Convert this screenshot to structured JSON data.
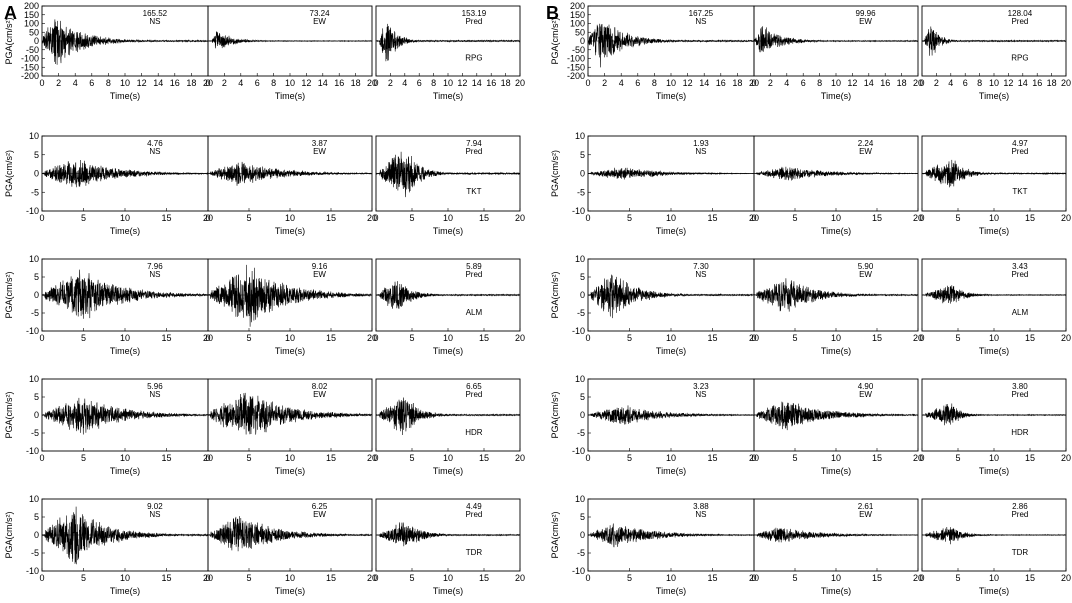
{
  "panel_labels": [
    "A",
    "B"
  ],
  "colors": {
    "trace": "#000000",
    "axes": "#000000",
    "background": "#ffffff"
  },
  "chart_data": [
    {
      "panel": "A",
      "type": "line",
      "xlabel": "Time(s)",
      "ylabel": "PGA(cm/s²)",
      "grid": false,
      "rows": [
        {
          "station": "RPG",
          "xlim": [
            0,
            20
          ],
          "xticks": [
            0,
            2,
            4,
            6,
            8,
            10,
            12,
            14,
            16,
            18,
            20
          ],
          "ylim": [
            -200,
            200
          ],
          "yticks": [
            -200,
            -150,
            -100,
            -50,
            0,
            50,
            100,
            150,
            200
          ],
          "series": [
            {
              "name": "NS",
              "peak": "165.52",
              "env": [
                0.1,
                1.5,
                7
              ]
            },
            {
              "name": "EW",
              "peak": "73.24",
              "env": [
                0.5,
                1.0,
                4
              ]
            },
            {
              "name": "Pred",
              "peak": "153.19",
              "env": [
                0.5,
                1.5,
                3
              ]
            }
          ]
        },
        {
          "station": "TKT",
          "xlim": [
            0,
            20
          ],
          "xticks": [
            0,
            5,
            10,
            15,
            20
          ],
          "ylim": [
            -10,
            10
          ],
          "yticks": [
            -10,
            -5,
            0,
            5,
            10
          ],
          "series": [
            {
              "name": "NS",
              "peak": "4.76",
              "env": [
                0.3,
                4,
                10
              ]
            },
            {
              "name": "EW",
              "peak": "3.87",
              "env": [
                0.3,
                4,
                10
              ]
            },
            {
              "name": "Pred",
              "peak": "7.94",
              "env": [
                0.5,
                4,
                4
              ]
            }
          ]
        },
        {
          "station": "ALM",
          "xlim": [
            0,
            20
          ],
          "xticks": [
            0,
            5,
            10,
            15,
            20
          ],
          "ylim": [
            -10,
            10
          ],
          "yticks": [
            -10,
            -5,
            0,
            5,
            10
          ],
          "series": [
            {
              "name": "NS",
              "peak": "7.96",
              "env": [
                0.3,
                5,
                10
              ]
            },
            {
              "name": "EW",
              "peak": "9.16",
              "env": [
                0.3,
                5,
                10
              ]
            },
            {
              "name": "Pred",
              "peak": "5.89",
              "env": [
                0.5,
                3,
                4
              ]
            }
          ]
        },
        {
          "station": "HDR",
          "xlim": [
            0,
            20
          ],
          "xticks": [
            0,
            5,
            10,
            15,
            20
          ],
          "ylim": [
            -10,
            10
          ],
          "yticks": [
            -10,
            -5,
            0,
            5,
            10
          ],
          "series": [
            {
              "name": "NS",
              "peak": "5.96",
              "env": [
                0.3,
                5,
                10
              ]
            },
            {
              "name": "EW",
              "peak": "8.02",
              "env": [
                0.3,
                5,
                10
              ]
            },
            {
              "name": "Pred",
              "peak": "6.65",
              "env": [
                0.5,
                4,
                4
              ]
            }
          ]
        },
        {
          "station": "TDR",
          "xlim": [
            0,
            20
          ],
          "xticks": [
            0,
            5,
            10,
            15,
            20
          ],
          "ylim": [
            -10,
            10
          ],
          "yticks": [
            -10,
            -5,
            0,
            5,
            10
          ],
          "series": [
            {
              "name": "NS",
              "peak": "9.02",
              "env": [
                0.3,
                4,
                8
              ]
            },
            {
              "name": "EW",
              "peak": "6.25",
              "env": [
                0.3,
                4,
                9
              ]
            },
            {
              "name": "Pred",
              "peak": "4.49",
              "env": [
                0.5,
                4,
                5
              ]
            }
          ]
        }
      ]
    },
    {
      "panel": "B",
      "type": "line",
      "xlabel": "Time(s)",
      "ylabel": "PGA(cm/s²)",
      "grid": false,
      "rows": [
        {
          "station": "RPG",
          "xlim": [
            0,
            20
          ],
          "xticks": [
            0,
            2,
            4,
            6,
            8,
            10,
            12,
            14,
            16,
            18,
            20
          ],
          "ylim": [
            -200,
            200
          ],
          "yticks": [
            -200,
            -150,
            -100,
            -50,
            0,
            50,
            100,
            150,
            200
          ],
          "series": [
            {
              "name": "NS",
              "peak": "167.25",
              "env": [
                0.1,
                1.5,
                6
              ]
            },
            {
              "name": "EW",
              "peak": "99.96",
              "env": [
                0.1,
                1.0,
                5
              ]
            },
            {
              "name": "Pred",
              "peak": "128.04",
              "env": [
                0.4,
                1.2,
                2.5
              ]
            }
          ]
        },
        {
          "station": "TKT",
          "xlim": [
            0,
            20
          ],
          "xticks": [
            0,
            5,
            10,
            15,
            20
          ],
          "ylim": [
            -10,
            10
          ],
          "yticks": [
            -10,
            -5,
            0,
            5,
            10
          ],
          "series": [
            {
              "name": "NS",
              "peak": "1.93",
              "env": [
                0.3,
                4,
                10
              ]
            },
            {
              "name": "EW",
              "peak": "2.24",
              "env": [
                0.3,
                4,
                10
              ]
            },
            {
              "name": "Pred",
              "peak": "4.97",
              "env": [
                0.5,
                4,
                4
              ]
            }
          ]
        },
        {
          "station": "ALM",
          "xlim": [
            0,
            20
          ],
          "xticks": [
            0,
            5,
            10,
            15,
            20
          ],
          "ylim": [
            -10,
            10
          ],
          "yticks": [
            -10,
            -5,
            0,
            5,
            10
          ],
          "series": [
            {
              "name": "NS",
              "peak": "7.30",
              "env": [
                0.3,
                3,
                6
              ]
            },
            {
              "name": "EW",
              "peak": "5.90",
              "env": [
                0.3,
                4,
                7
              ]
            },
            {
              "name": "Pred",
              "peak": "3.43",
              "env": [
                0.5,
                4,
                4
              ]
            }
          ]
        },
        {
          "station": "HDR",
          "xlim": [
            0,
            20
          ],
          "xticks": [
            0,
            5,
            10,
            15,
            20
          ],
          "ylim": [
            -10,
            10
          ],
          "yticks": [
            -10,
            -5,
            0,
            5,
            10
          ],
          "series": [
            {
              "name": "NS",
              "peak": "3.23",
              "env": [
                0.3,
                4,
                10
              ]
            },
            {
              "name": "EW",
              "peak": "4.90",
              "env": [
                0.3,
                4,
                10
              ]
            },
            {
              "name": "Pred",
              "peak": "3.80",
              "env": [
                0.5,
                4,
                3
              ]
            }
          ]
        },
        {
          "station": "TDR",
          "xlim": [
            0,
            20
          ],
          "xticks": [
            0,
            5,
            10,
            15,
            20
          ],
          "ylim": [
            -10,
            10
          ],
          "yticks": [
            -10,
            -5,
            0,
            5,
            10
          ],
          "series": [
            {
              "name": "NS",
              "peak": "3.88",
              "env": [
                0.3,
                3,
                10
              ]
            },
            {
              "name": "EW",
              "peak": "2.61",
              "env": [
                0.3,
                3,
                10
              ]
            },
            {
              "name": "Pred",
              "peak": "2.86",
              "env": [
                0.5,
                4,
                4
              ]
            }
          ]
        }
      ]
    }
  ]
}
